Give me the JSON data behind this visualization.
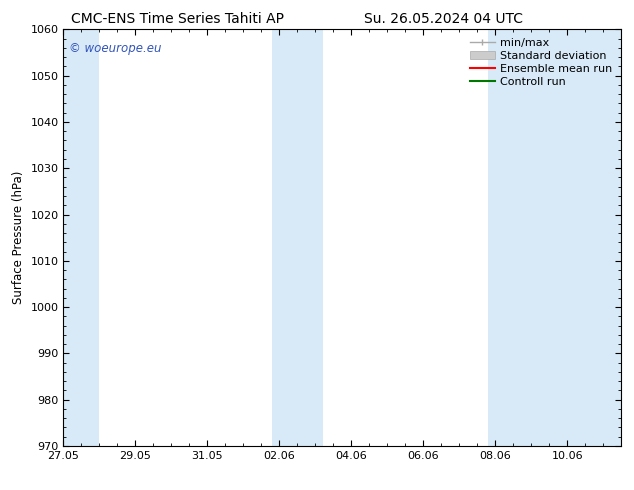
{
  "title_left": "CMC-ENS Time Series Tahiti AP",
  "title_right": "Su. 26.05.2024 04 UTC",
  "ylabel": "Surface Pressure (hPa)",
  "ylim": [
    970,
    1060
  ],
  "yticks": [
    970,
    980,
    990,
    1000,
    1010,
    1020,
    1030,
    1040,
    1050,
    1060
  ],
  "xtick_labels": [
    "27.05",
    "29.05",
    "31.05",
    "02.06",
    "04.06",
    "06.06",
    "08.06",
    "10.06"
  ],
  "xtick_positions": [
    0,
    2,
    4,
    6,
    8,
    10,
    12,
    14
  ],
  "xlim": [
    0,
    15.5
  ],
  "shaded_bands": [
    {
      "x_start": 0.0,
      "x_end": 1.0
    },
    {
      "x_start": 5.8,
      "x_end": 7.2
    },
    {
      "x_start": 11.8,
      "x_end": 15.5
    }
  ],
  "shaded_color": "#d8eaf8",
  "background_color": "#ffffff",
  "watermark_text": "© woeurope.eu",
  "watermark_color": "#3355bb",
  "legend_entries": [
    {
      "label": "min/max",
      "color": "#aaaaaa"
    },
    {
      "label": "Standard deviation",
      "color": "#cccccc"
    },
    {
      "label": "Ensemble mean run",
      "color": "#ff0000"
    },
    {
      "label": "Controll run",
      "color": "#007700"
    }
  ],
  "title_fontsize": 10,
  "axis_fontsize": 8.5,
  "tick_fontsize": 8,
  "legend_fontsize": 8
}
